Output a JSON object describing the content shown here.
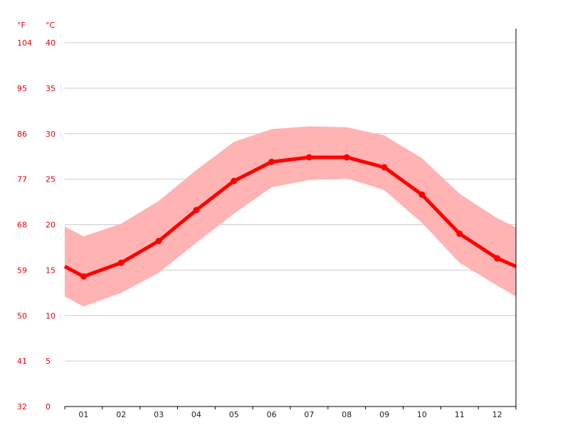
{
  "chart_data": {
    "type": "line",
    "title": "",
    "xlabel": "",
    "ylabel": "",
    "units": {
      "fahrenheit": "°F",
      "celsius": "°C"
    },
    "categories": [
      "01",
      "02",
      "03",
      "04",
      "05",
      "06",
      "07",
      "08",
      "09",
      "10",
      "11",
      "12"
    ],
    "ylim": [
      0,
      40
    ],
    "y_ticks_c": [
      "0",
      "5",
      "10",
      "15",
      "20",
      "25",
      "30",
      "35",
      "40"
    ],
    "y_ticks_f": [
      "32",
      "41",
      "50",
      "59",
      "68",
      "77",
      "86",
      "95",
      "104"
    ],
    "grid": true,
    "series": [
      {
        "role": "average",
        "color": "#ff0000",
        "values": [
          14.3,
          15.8,
          18.2,
          21.6,
          24.8,
          26.9,
          27.4,
          27.4,
          26.3,
          23.3,
          19.0,
          16.3
        ]
      },
      {
        "role": "max",
        "color": "#ffb3b3",
        "values": [
          18.7,
          20.1,
          22.6,
          26.0,
          29.1,
          30.5,
          30.8,
          30.7,
          29.8,
          27.3,
          23.4,
          20.7
        ]
      },
      {
        "role": "min",
        "color": "#ffb3b3",
        "values": [
          11.0,
          12.5,
          14.7,
          18.0,
          21.2,
          24.1,
          24.9,
          25.1,
          23.8,
          20.2,
          15.8,
          13.3
        ]
      }
    ],
    "edge_values": {
      "average": [
        15.4,
        15.4
      ],
      "max": [
        19.8,
        19.7
      ],
      "min": [
        12.1,
        12.1
      ]
    }
  }
}
